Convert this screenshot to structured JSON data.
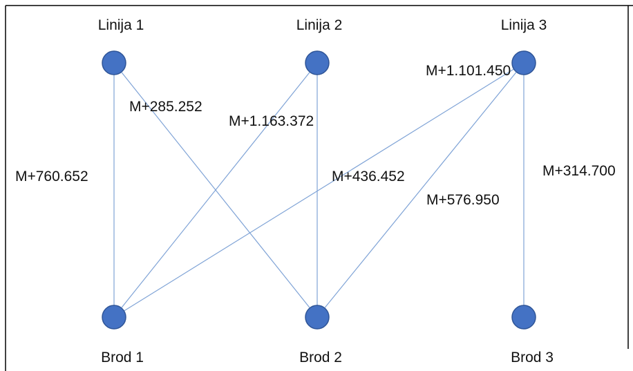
{
  "colors": {
    "node_fill": "#4472c4",
    "node_stroke": "#2f5597",
    "edge": "#7fa3d6",
    "frame": "#000000"
  },
  "nodes": {
    "linija1": "Linija 1",
    "linija2": "Linija 2",
    "linija3": "Linija 3",
    "brod1": "Brod 1",
    "brod2": "Brod 2",
    "brod3": "Brod 3"
  },
  "edges": {
    "l1_b1": "M+760.652",
    "l1_b2": "M+285.252",
    "l2_b1": "M+1.163.372",
    "l3_b1": "M+436.452",
    "l3_b2": "M+576.950",
    "l3_b3": "M+314.700",
    "l3_top": "M+1.101.450"
  }
}
